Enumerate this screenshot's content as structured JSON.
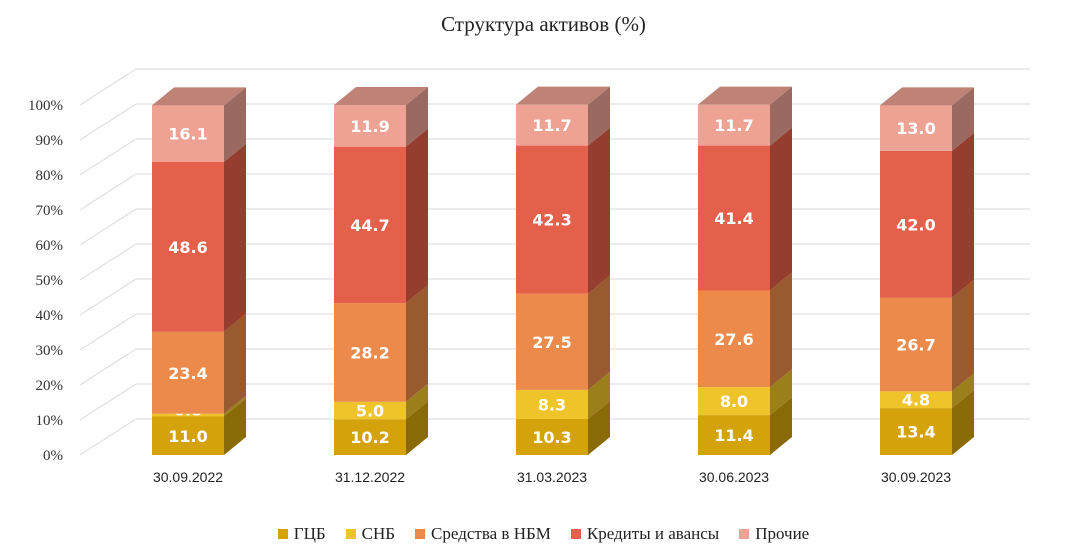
{
  "chart_data": {
    "type": "bar",
    "stacked": true,
    "three_d": true,
    "title": "Структура активов (%)",
    "xlabel": "",
    "ylabel": "",
    "ylim": [
      0,
      100
    ],
    "yticks": [
      "0%",
      "10%",
      "20%",
      "30%",
      "40%",
      "50%",
      "60%",
      "70%",
      "80%",
      "90%",
      "100%"
    ],
    "categories": [
      "30.09.2022",
      "31.12.2022",
      "31.03.2023",
      "30.06.2023",
      "30.09.2023"
    ],
    "series": [
      {
        "name": "ГЦБ",
        "color": "#D4A20A",
        "values": [
          11.0,
          10.2,
          10.3,
          11.4,
          13.4
        ],
        "labels": [
          "11.0",
          "10.2",
          "10.3",
          "11.4",
          "13.4"
        ]
      },
      {
        "name": "СНБ",
        "color": "#EFC32A",
        "values": [
          0.8,
          5.0,
          8.3,
          8.0,
          4.8
        ],
        "labels": [
          "0.8",
          "5.0",
          "8.3",
          "8.0",
          "4.8"
        ]
      },
      {
        "name": "Средства в НБМ",
        "color": "#EB8A4A",
        "values": [
          23.4,
          28.2,
          27.5,
          27.6,
          26.7
        ],
        "labels": [
          "23.4",
          "28.2",
          "27.5",
          "27.6",
          "26.7"
        ]
      },
      {
        "name": "Кредиты и авансы",
        "color": "#E5604A",
        "values": [
          48.6,
          44.7,
          42.3,
          41.4,
          42.0
        ],
        "labels": [
          "48.6",
          "44.7",
          "42.3",
          "41.4",
          "42.0"
        ]
      },
      {
        "name": "Прочие",
        "color": "#EDA293",
        "values": [
          16.1,
          11.9,
          11.7,
          11.7,
          13.0
        ],
        "labels": [
          "16.1",
          "11.9",
          "11.7",
          "11.7",
          "13.0"
        ]
      }
    ],
    "grid": true,
    "legend_position": "bottom"
  }
}
